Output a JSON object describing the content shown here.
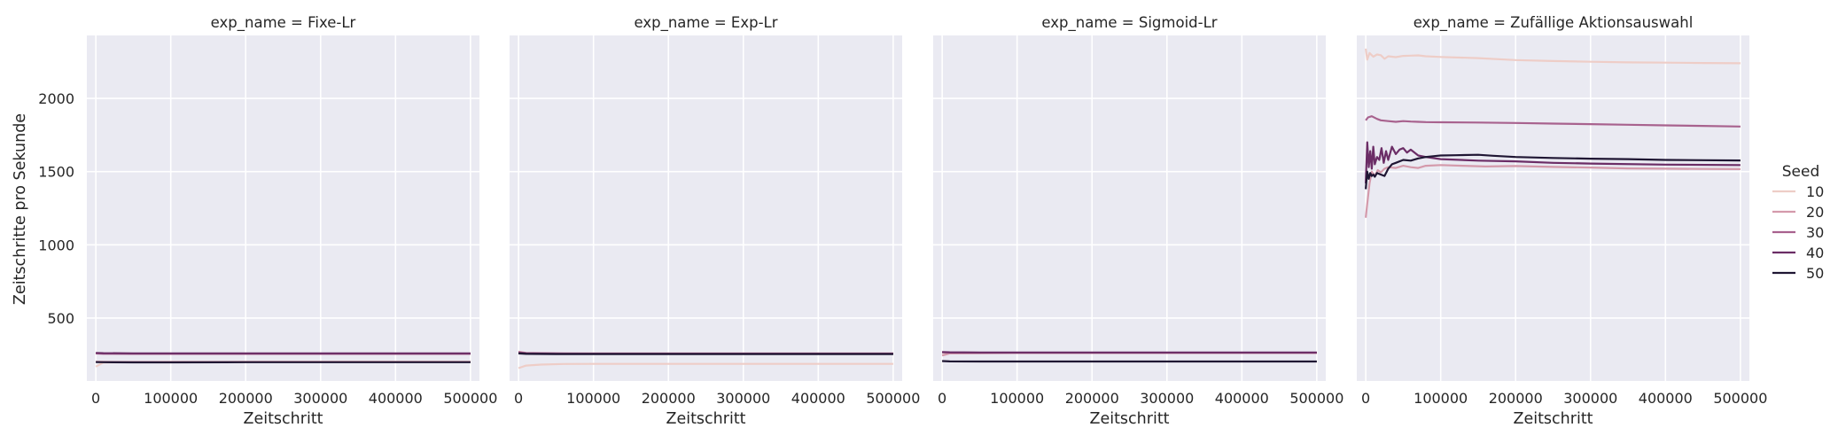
{
  "chart_data": {
    "type": "line",
    "facet_var": "exp_name",
    "xlabel": "Zeitschritt",
    "ylabel": "Zeitschritte pro Sekunde",
    "xlim": [
      -12000,
      512000
    ],
    "ylim": [
      70,
      2430
    ],
    "x_ticks": [
      0,
      100000,
      200000,
      300000,
      400000,
      500000
    ],
    "x_tick_labels": [
      "0",
      "100000",
      "200000",
      "300000",
      "400000",
      "500000"
    ],
    "y_ticks": [
      500,
      1000,
      1500,
      2000
    ],
    "y_tick_labels": [
      "500",
      "1000",
      "1500",
      "2000"
    ],
    "grid": true,
    "legend": {
      "title": "Seed",
      "placement": "right",
      "entries": [
        {
          "label": "10",
          "color": "#eecdc7"
        },
        {
          "label": "20",
          "color": "#d49aab"
        },
        {
          "label": "30",
          "color": "#a8628e"
        },
        {
          "label": "40",
          "color": "#6b2d66"
        },
        {
          "label": "50",
          "color": "#1f1633"
        }
      ]
    },
    "panels": [
      {
        "title": "exp_name = Fixe-Lr",
        "series": [
          {
            "name": "10",
            "color": "#eecdc7",
            "x": [
              0,
              10000,
              50000,
              100000,
              200000,
              300000,
              400000,
              500000
            ],
            "y": [
              168,
              196,
              199,
              200,
              200,
              201,
              201,
              201
            ]
          },
          {
            "name": "20",
            "color": "#d49aab",
            "x": [
              0,
              10000,
              50000,
              100000,
              200000,
              300000,
              400000,
              500000
            ],
            "y": [
              202,
              201,
              200,
              200,
              201,
              201,
              201,
              201
            ]
          },
          {
            "name": "30",
            "color": "#a8628e",
            "x": [
              0,
              10000,
              50000,
              100000,
              200000,
              300000,
              400000,
              500000
            ],
            "y": [
              258,
              256,
              255,
              255,
              255,
              255,
              255,
              255
            ]
          },
          {
            "name": "40",
            "color": "#6b2d66",
            "x": [
              0,
              10000,
              50000,
              100000,
              200000,
              300000,
              400000,
              500000
            ],
            "y": [
              262,
              260,
              259,
              259,
              259,
              259,
              259,
              259
            ]
          },
          {
            "name": "50",
            "color": "#1f1633",
            "x": [
              0,
              10000,
              50000,
              100000,
              200000,
              300000,
              400000,
              500000
            ],
            "y": [
              199,
              198,
              197,
              197,
              198,
              198,
              198,
              198
            ]
          }
        ]
      },
      {
        "title": "exp_name = Exp-Lr",
        "series": [
          {
            "name": "10",
            "color": "#eecdc7",
            "x": [
              0,
              10000,
              30000,
              60000,
              100000,
              200000,
              300000,
              400000,
              500000
            ],
            "y": [
              158,
              175,
              182,
              186,
              187,
              187,
              187,
              187,
              187
            ]
          },
          {
            "name": "20",
            "color": "#d49aab",
            "x": [
              0,
              10000,
              50000,
              100000,
              200000,
              300000,
              400000,
              500000
            ],
            "y": [
              270,
              262,
              259,
              258,
              258,
              258,
              258,
              258
            ]
          },
          {
            "name": "30",
            "color": "#a8628e",
            "x": [
              0,
              10000,
              50000,
              100000,
              200000,
              300000,
              400000,
              500000
            ],
            "y": [
              266,
              260,
              258,
              257,
              257,
              257,
              257,
              257
            ]
          },
          {
            "name": "40",
            "color": "#6b2d66",
            "x": [
              0,
              10000,
              50000,
              100000,
              200000,
              300000,
              400000,
              500000
            ],
            "y": [
              262,
              258,
              256,
              256,
              256,
              256,
              256,
              256
            ]
          },
          {
            "name": "50",
            "color": "#1f1633",
            "x": [
              0,
              10000,
              50000,
              100000,
              200000,
              300000,
              400000,
              500000
            ],
            "y": [
              258,
              255,
              254,
              254,
              254,
              254,
              254,
              254
            ]
          }
        ]
      },
      {
        "title": "exp_name = Sigmoid-Lr",
        "series": [
          {
            "name": "10",
            "color": "#eecdc7",
            "x": [
              0,
              10000,
              50000,
              100000,
              200000,
              300000,
              400000,
              500000
            ],
            "y": [
              262,
              262,
              261,
              261,
              261,
              261,
              261,
              261
            ]
          },
          {
            "name": "20",
            "color": "#d49aab",
            "x": [
              0,
              10000,
              50000,
              100000,
              200000,
              300000,
              400000,
              500000
            ],
            "y": [
              244,
              258,
              260,
              261,
              261,
              261,
              261,
              261
            ]
          },
          {
            "name": "30",
            "color": "#a8628e",
            "x": [
              0,
              10000,
              50000,
              100000,
              200000,
              300000,
              400000,
              500000
            ],
            "y": [
              266,
              264,
              263,
              263,
              263,
              263,
              263,
              263
            ]
          },
          {
            "name": "40",
            "color": "#6b2d66",
            "x": [
              0,
              10000,
              50000,
              100000,
              200000,
              300000,
              400000,
              500000
            ],
            "y": [
              268,
              266,
              265,
              265,
              265,
              265,
              265,
              265
            ]
          },
          {
            "name": "50",
            "color": "#1f1633",
            "x": [
              0,
              10000,
              50000,
              100000,
              200000,
              300000,
              400000,
              500000
            ],
            "y": [
              206,
              204,
              203,
              203,
              203,
              203,
              203,
              203
            ]
          }
        ]
      },
      {
        "title": "exp_name = Zufällige Aktionsauswahl",
        "series": [
          {
            "name": "10",
            "color": "#eecdc7",
            "x": [
              0,
              2000,
              5000,
              10000,
              15000,
              20000,
              25000,
              30000,
              40000,
              50000,
              60000,
              70000,
              80000,
              100000,
              150000,
              200000,
              250000,
              300000,
              350000,
              400000,
              450000,
              500000
            ],
            "y": [
              2340,
              2265,
              2310,
              2285,
              2300,
              2295,
              2270,
              2288,
              2282,
              2290,
              2292,
              2294,
              2288,
              2283,
              2275,
              2262,
              2255,
              2250,
              2246,
              2244,
              2242,
              2240
            ]
          },
          {
            "name": "20",
            "color": "#d49aab",
            "x": [
              0,
              2000,
              5000,
              8000,
              12000,
              16000,
              20000,
              25000,
              30000,
              40000,
              50000,
              60000,
              70000,
              80000,
              100000,
              130000,
              160000,
              200000,
              250000,
              300000,
              350000,
              400000,
              450000,
              500000
            ],
            "y": [
              1185,
              1280,
              1420,
              1500,
              1470,
              1510,
              1495,
              1520,
              1530,
              1525,
              1540,
              1530,
              1525,
              1540,
              1545,
              1540,
              1535,
              1538,
              1532,
              1528,
              1522,
              1520,
              1518,
              1517
            ]
          },
          {
            "name": "30",
            "color": "#a8628e",
            "x": [
              0,
              3000,
              8000,
              15000,
              20000,
              30000,
              40000,
              50000,
              60000,
              70000,
              80000,
              100000,
              150000,
              200000,
              250000,
              300000,
              350000,
              400000,
              450000,
              500000
            ],
            "y": [
              1850,
              1870,
              1878,
              1860,
              1850,
              1845,
              1840,
              1845,
              1842,
              1840,
              1838,
              1837,
              1835,
              1832,
              1828,
              1824,
              1820,
              1816,
              1812,
              1808
            ]
          },
          {
            "name": "40",
            "color": "#6b2d66",
            "x": [
              0,
              2000,
              4000,
              6000,
              8000,
              10000,
              12000,
              15000,
              18000,
              21000,
              24000,
              27000,
              30000,
              35000,
              40000,
              45000,
              50000,
              55000,
              60000,
              70000,
              80000,
              100000,
              150000,
              200000,
              250000,
              300000,
              400000,
              500000
            ],
            "y": [
              1420,
              1700,
              1530,
              1640,
              1520,
              1670,
              1550,
              1600,
              1580,
              1660,
              1560,
              1640,
              1580,
              1670,
              1620,
              1650,
              1660,
              1630,
              1650,
              1610,
              1600,
              1585,
              1575,
              1570,
              1560,
              1555,
              1548,
              1545
            ]
          },
          {
            "name": "50",
            "color": "#1f1633",
            "x": [
              0,
              2000,
              4000,
              6000,
              8000,
              10000,
              12000,
              15000,
              20000,
              25000,
              30000,
              35000,
              40000,
              50000,
              60000,
              70000,
              80000,
              90000,
              100000,
              120000,
              150000,
              170000,
              200000,
              250000,
              300000,
              350000,
              400000,
              450000,
              500000
            ],
            "y": [
              1380,
              1500,
              1450,
              1490,
              1470,
              1480,
              1465,
              1490,
              1480,
              1470,
              1520,
              1550,
              1560,
              1580,
              1575,
              1590,
              1600,
              1605,
              1610,
              1612,
              1615,
              1608,
              1600,
              1593,
              1588,
              1585,
              1580,
              1578,
              1576
            ]
          }
        ]
      }
    ]
  }
}
